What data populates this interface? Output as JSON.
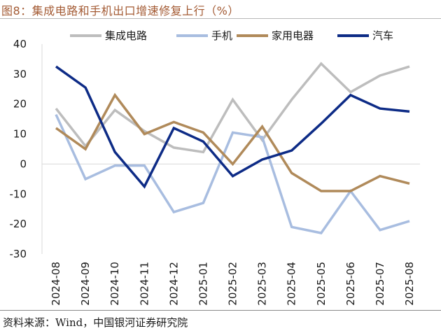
{
  "title": "图8：集成电路和手机出口增速修复上行（%）",
  "source": "资料来源：Wind，中国银河证券研究院",
  "chart_data": {
    "type": "line",
    "x": [
      "2024-08",
      "2024-09",
      "2024-10",
      "2024-11",
      "2024-12",
      "2025-01",
      "2025-02",
      "2025-03",
      "2025-04",
      "2025-05",
      "2025-06",
      "2025-07",
      "2025-08"
    ],
    "ylim": [
      -30,
      40
    ],
    "yticks": [
      -30,
      -20,
      -10,
      0,
      10,
      20,
      30,
      40
    ],
    "legend_position": "top",
    "series": [
      {
        "name": "集成电路",
        "color": "#bdbdbd",
        "values": [
          18.5,
          6,
          18,
          11,
          5.5,
          4,
          21.5,
          8,
          21.5,
          33.5,
          24,
          29.5,
          32.5
        ]
      },
      {
        "name": "手机",
        "color": "#a8bde0",
        "values": [
          16.5,
          -5,
          -0.5,
          -0.5,
          -16,
          -13,
          10.5,
          9,
          -21,
          -23,
          -9,
          -22,
          -19
        ]
      },
      {
        "name": "家用电器",
        "color": "#b08a5a",
        "values": [
          12,
          5,
          23,
          10,
          14,
          10.5,
          0,
          12.5,
          -3,
          -9,
          -9,
          -4,
          -6.5
        ]
      },
      {
        "name": "汽车",
        "color": "#0d2b86",
        "values": [
          32.5,
          25.5,
          4,
          -7.5,
          12,
          7.5,
          -4,
          1.5,
          4.5,
          13.5,
          23,
          18.5,
          17.5
        ]
      }
    ]
  }
}
